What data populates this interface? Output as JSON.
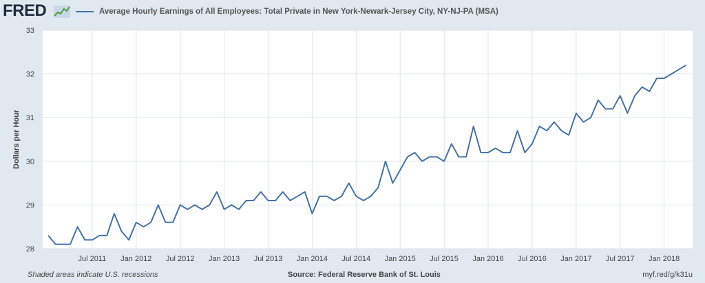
{
  "header": {
    "logo_text": "FRED",
    "logo_icon": "fred-graph-icon",
    "legend_label": "Average Hourly Earnings of All Employees: Total Private in New York-Newark-Jersey City, NY-NJ-PA (MSA)"
  },
  "footer": {
    "note": "Shaded areas indicate U.S. recessions",
    "source": "Source: Federal Reserve Bank of St. Louis",
    "link": "myf.red/g/k31u"
  },
  "colors": {
    "background": "#e1e9f0",
    "plot_background": "#ffffff",
    "series": "#4572a7",
    "grid": "#dde3ea"
  },
  "chart_data": {
    "type": "line",
    "title": "",
    "xlabel": "",
    "ylabel": "Dollars per Hour",
    "ylim": [
      28,
      33
    ],
    "yticks": [
      28,
      29,
      30,
      31,
      32,
      33
    ],
    "xticks": [
      "Jul 2011",
      "Jan 2012",
      "Jul 2012",
      "Jan 2013",
      "Jul 2013",
      "Jan 2014",
      "Jul 2014",
      "Jan 2015",
      "Jul 2015",
      "Jan 2016",
      "Jul 2016",
      "Jan 2017",
      "Jul 2017",
      "Jan 2018"
    ],
    "grid": true,
    "legend": "top-left",
    "series": [
      {
        "name": "Average Hourly Earnings of All Employees: Total Private in New York-Newark-Jersey City, NY-NJ-PA (MSA)",
        "x_start": "2011-01",
        "frequency": "monthly",
        "values": [
          28.3,
          28.1,
          28.1,
          28.1,
          28.5,
          28.2,
          28.2,
          28.3,
          28.3,
          28.8,
          28.4,
          28.2,
          28.6,
          28.5,
          28.6,
          29.0,
          28.6,
          28.6,
          29.0,
          28.9,
          29.0,
          28.9,
          29.0,
          29.3,
          28.9,
          29.0,
          28.9,
          29.1,
          29.1,
          29.3,
          29.1,
          29.1,
          29.3,
          29.1,
          29.2,
          29.3,
          28.8,
          29.2,
          29.2,
          29.1,
          29.2,
          29.5,
          29.2,
          29.1,
          29.2,
          29.4,
          30.0,
          29.5,
          29.8,
          30.1,
          30.2,
          30.0,
          30.1,
          30.1,
          30.0,
          30.4,
          30.1,
          30.1,
          30.8,
          30.2,
          30.2,
          30.3,
          30.2,
          30.2,
          30.7,
          30.2,
          30.4,
          30.8,
          30.7,
          30.9,
          30.7,
          30.6,
          31.1,
          30.9,
          31.0,
          31.4,
          31.2,
          31.2,
          31.5,
          31.1,
          31.5,
          31.7,
          31.6,
          31.9,
          31.9,
          32.0,
          32.1,
          32.2
        ]
      }
    ]
  }
}
